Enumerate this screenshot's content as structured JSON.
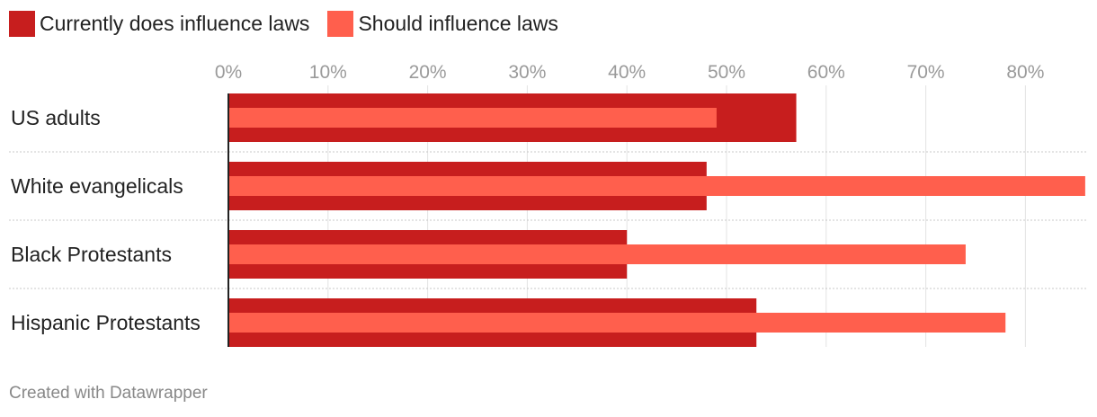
{
  "legend": [
    {
      "label": "Currently does influence laws",
      "color": "#c71e1e"
    },
    {
      "label": "Should influence laws",
      "color": "#ff5f4d"
    }
  ],
  "footer": {
    "text": "Created with Datawrapper"
  },
  "chart_data": {
    "type": "bar",
    "orientation": "horizontal",
    "title": "",
    "xlabel": "",
    "ylabel": "",
    "categories": [
      "US adults",
      "White evangelicals",
      "Black Protestants",
      "Hispanic Protestants"
    ],
    "series": [
      {
        "name": "Currently does influence laws",
        "color": "#c71e1e",
        "values": [
          57,
          48,
          40,
          53
        ]
      },
      {
        "name": "Should influence laws",
        "color": "#ff5f4d",
        "values": [
          49,
          86,
          74,
          78
        ]
      }
    ],
    "xlim": [
      0,
      86
    ],
    "ticks": [
      0,
      10,
      20,
      30,
      40,
      50,
      60,
      70,
      80
    ],
    "tick_labels": [
      "0%",
      "10%",
      "20%",
      "30%",
      "40%",
      "50%",
      "60%",
      "70%",
      "80%"
    ],
    "grid": true,
    "legend_position": "top-left"
  }
}
